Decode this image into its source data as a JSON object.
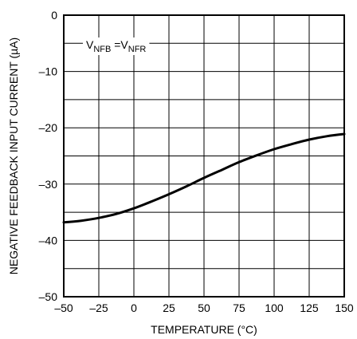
{
  "chart_data": {
    "type": "line",
    "xlabel": "TEMPERATURE (°C)",
    "ylabel": "NEGATIVE FEEDBACK INPUT CURRENT (µA)",
    "xlim": [
      -50,
      150
    ],
    "ylim": [
      -50,
      0
    ],
    "x_major_ticks": [
      -50,
      -25,
      0,
      25,
      50,
      75,
      100,
      125,
      150
    ],
    "y_major_ticks": [
      0,
      -10,
      -20,
      -30,
      -40,
      -50
    ],
    "x_tick_labels": [
      "–50",
      "–25",
      "0",
      "25",
      "50",
      "75",
      "100",
      "125",
      "150"
    ],
    "y_tick_labels": [
      "0",
      "–10",
      "–20",
      "–30",
      "–40",
      "–50"
    ],
    "grid": true,
    "annotation": {
      "main": "V",
      "sub1": "NFB",
      "mid": " =V",
      "sub2": "NFR"
    },
    "series": [
      {
        "x": [
          -50,
          -37.5,
          -25,
          -12.5,
          0,
          12.5,
          25,
          37.5,
          50,
          62.5,
          75,
          87.5,
          100,
          112.5,
          125,
          137.5,
          150
        ],
        "y": [
          -36.8,
          -36.5,
          -36.0,
          -35.3,
          -34.3,
          -33.1,
          -31.8,
          -30.4,
          -28.9,
          -27.5,
          -26.1,
          -24.9,
          -23.8,
          -22.9,
          -22.1,
          -21.5,
          -21.1
        ]
      }
    ]
  }
}
